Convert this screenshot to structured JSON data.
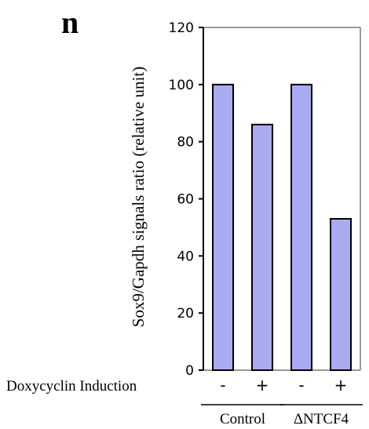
{
  "panel_label": "n",
  "chart_data": {
    "type": "bar",
    "categories": [
      "-",
      "+",
      "-",
      "+"
    ],
    "values": [
      100,
      86,
      100,
      53
    ],
    "ylabel": "Sox9/Gapdh signals ratio (relative unit)",
    "xlabel": "",
    "ylim": [
      0,
      120
    ],
    "yticks": [
      0,
      20,
      40,
      60,
      80,
      100,
      120
    ],
    "row_label": "Doxycyclin Induction",
    "groups": [
      {
        "label": "Control",
        "categories": [
          0,
          1
        ]
      },
      {
        "label": "ΔNTCF4",
        "categories": [
          2,
          3
        ]
      }
    ],
    "grid": false,
    "bar_color": "#aaaaf0",
    "bar_edge_color": "#000000",
    "frame_color": "#999999"
  }
}
